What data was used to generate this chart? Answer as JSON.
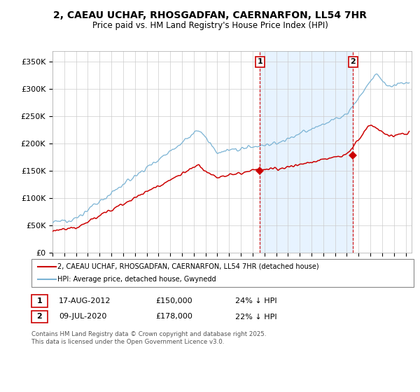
{
  "title1": "2, CAEAU UCHAF, RHOSGADFAN, CAERNARFON, LL54 7HR",
  "title2": "Price paid vs. HM Land Registry's House Price Index (HPI)",
  "ylabel_ticks": [
    "£0",
    "£50K",
    "£100K",
    "£150K",
    "£200K",
    "£250K",
    "£300K",
    "£350K"
  ],
  "ytick_vals": [
    0,
    50000,
    100000,
    150000,
    200000,
    250000,
    300000,
    350000
  ],
  "ylim": [
    0,
    370000
  ],
  "xlim_start": 1995.0,
  "xlim_end": 2025.5,
  "hpi_color": "#7ab3d4",
  "price_color": "#cc0000",
  "vline_color": "#cc0000",
  "shade_color": "#ddeeff",
  "marker1_year": 2012.62,
  "marker1_price": 150000,
  "marker1_label": "1",
  "marker2_year": 2020.52,
  "marker2_price": 178000,
  "marker2_label": "2",
  "legend_line1": "2, CAEAU UCHAF, RHOSGADFAN, CAERNARFON, LL54 7HR (detached house)",
  "legend_line2": "HPI: Average price, detached house, Gwynedd",
  "table_row1": [
    "1",
    "17-AUG-2012",
    "£150,000",
    "24% ↓ HPI"
  ],
  "table_row2": [
    "2",
    "09-JUL-2020",
    "£178,000",
    "22% ↓ HPI"
  ],
  "footer": "Contains HM Land Registry data © Crown copyright and database right 2025.\nThis data is licensed under the Open Government Licence v3.0.",
  "background_color": "#ffffff",
  "grid_color": "#cccccc"
}
